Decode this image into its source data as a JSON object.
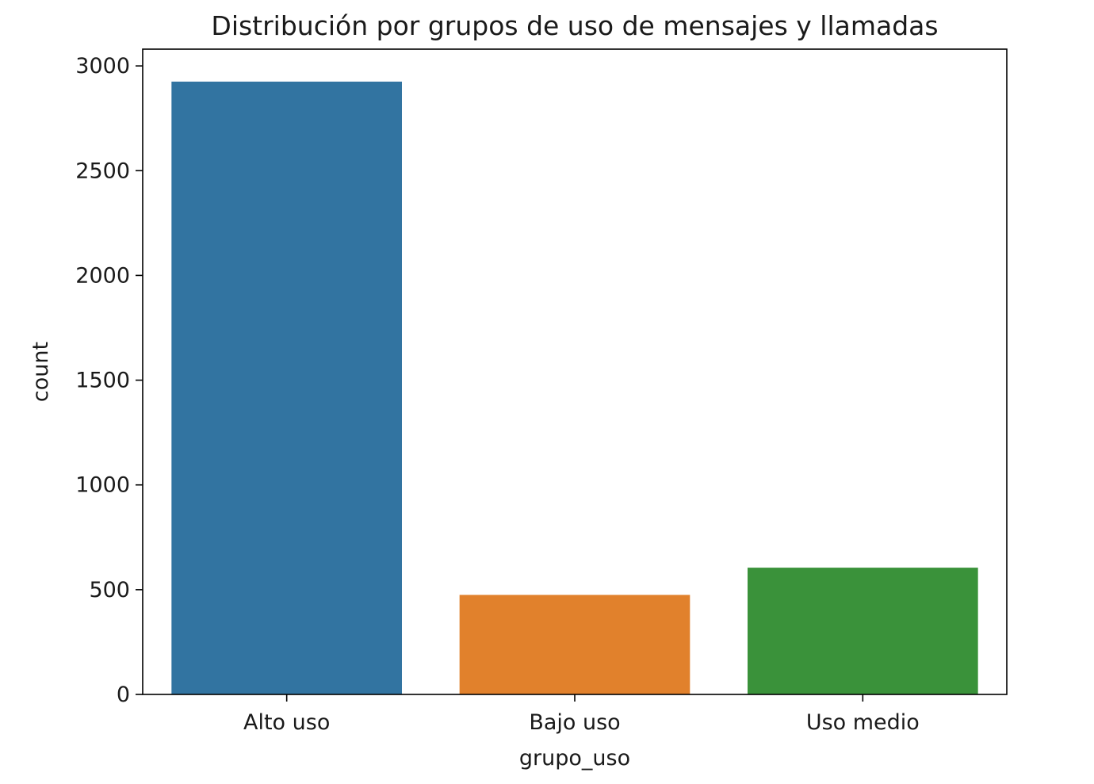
{
  "chart_data": {
    "type": "bar",
    "title": "Distribución por grupos de uso de mensajes y llamadas",
    "xlabel": "grupo_uso",
    "ylabel": "count",
    "categories": [
      "Alto uso",
      "Bajo uso",
      "Uso medio"
    ],
    "values": [
      2925,
      475,
      605
    ],
    "colors": [
      "#3274a1",
      "#e1812c",
      "#3a923a"
    ],
    "ylim": [
      0,
      3080
    ],
    "yticks": [
      0,
      500,
      1000,
      1500,
      2000,
      2500,
      3000
    ],
    "grid": false,
    "legend": "none"
  }
}
